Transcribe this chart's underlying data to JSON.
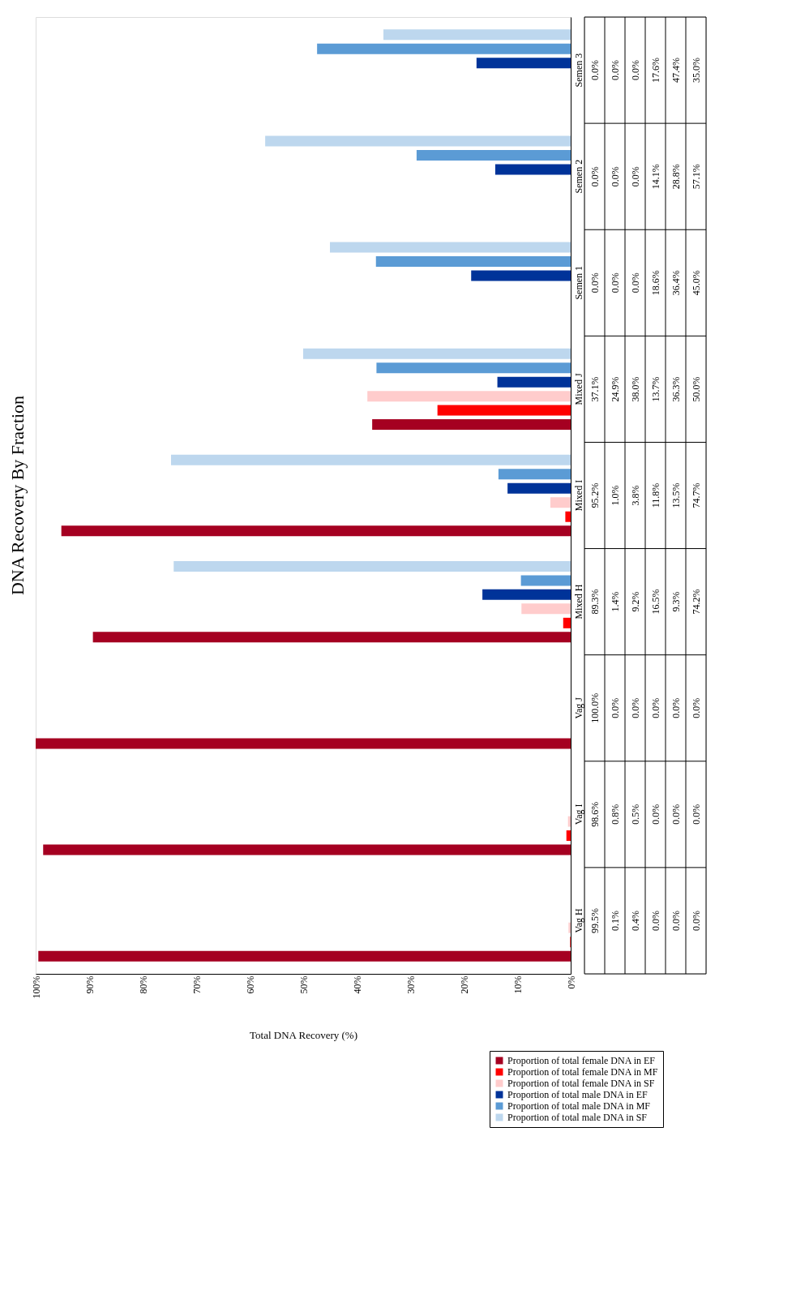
{
  "chart_data": {
    "type": "bar",
    "orientation": "horizontal",
    "title": "DNA Recovery By Fraction",
    "xlabel": "Total DNA Recovery (%)",
    "categories": [
      "Semen 3",
      "Semen 2",
      "Semen 1",
      "Mixed J",
      "Mixed I",
      "Mixed H",
      "Vag J",
      "Vag I",
      "Vag H"
    ],
    "xlim": [
      100,
      0
    ],
    "xticks": [
      {
        "value": 100,
        "label": "100%"
      },
      {
        "value": 90,
        "label": "90%"
      },
      {
        "value": 80,
        "label": "80%"
      },
      {
        "value": 70,
        "label": "70%"
      },
      {
        "value": 60,
        "label": "60%"
      },
      {
        "value": 50,
        "label": "50%"
      },
      {
        "value": 40,
        "label": "40%"
      },
      {
        "value": 30,
        "label": "30%"
      },
      {
        "value": 20,
        "label": "20%"
      },
      {
        "value": 10,
        "label": "10%"
      },
      {
        "value": 0,
        "label": "0%"
      }
    ],
    "grid": false,
    "legend": "bottom",
    "series": [
      {
        "name": "Proportion of total female DNA in EF",
        "color": "#a50021",
        "values": [
          0,
          0,
          0,
          37.1,
          95.2,
          89.3,
          100.0,
          98.6,
          99.5
        ],
        "value_labels": [
          "0.0%",
          "0.0%",
          "0.0%",
          "37.1%",
          "95.2%",
          "89.3%",
          "100.0%",
          "98.6%",
          "99.5%"
        ]
      },
      {
        "name": "Proportion of total female DNA in MF",
        "color": "#ff0000",
        "values": [
          0,
          0,
          0,
          24.9,
          1.0,
          1.4,
          0,
          0.8,
          0.1
        ],
        "value_labels": [
          "0.0%",
          "0.0%",
          "0.0%",
          "24.9%",
          "1.0%",
          "1.4%",
          "0.0%",
          "0.8%",
          "0.1%"
        ]
      },
      {
        "name": "Proportion of total female DNA in SF",
        "color": "#ffcccc",
        "values": [
          0,
          0,
          0,
          38.0,
          3.8,
          9.2,
          0,
          0.5,
          0.4
        ],
        "value_labels": [
          "0.0%",
          "0.0%",
          "0.0%",
          "38.0%",
          "3.8%",
          "9.2%",
          "0.0%",
          "0.5%",
          "0.4%"
        ]
      },
      {
        "name": "Proportion of total male DNA in EF",
        "color": "#003399",
        "values": [
          17.6,
          14.1,
          18.6,
          13.7,
          11.8,
          16.5,
          0,
          0,
          0
        ],
        "value_labels": [
          "17.6%",
          "14.1%",
          "18.6%",
          "13.7%",
          "11.8%",
          "16.5%",
          "0.0%",
          "0.0%",
          "0.0%"
        ]
      },
      {
        "name": "Proportion of total male DNA in MF",
        "color": "#5b9bd5",
        "values": [
          47.4,
          28.8,
          36.4,
          36.3,
          13.5,
          9.3,
          0,
          0,
          0
        ],
        "value_labels": [
          "47.4%",
          "28.8%",
          "36.4%",
          "36.3%",
          "13.5%",
          "9.3%",
          "0.0%",
          "0.0%",
          "0.0%"
        ]
      },
      {
        "name": "Proportion of total male DNA in SF",
        "color": "#bdd7ee",
        "values": [
          35.0,
          57.1,
          45.0,
          50.0,
          74.7,
          74.2,
          0,
          0,
          0
        ],
        "value_labels": [
          "35.0%",
          "57.1%",
          "45.0%",
          "50.0%",
          "74.7%",
          "74.2%",
          "0.0%",
          "0.0%",
          "0.0%"
        ]
      }
    ]
  }
}
